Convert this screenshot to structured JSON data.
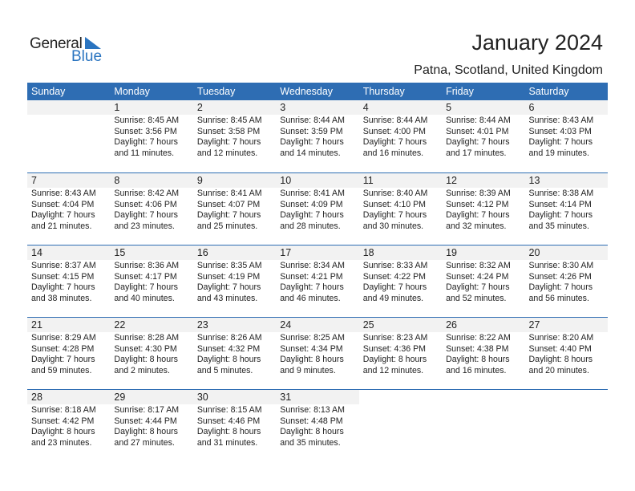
{
  "logo": {
    "general": "General",
    "blue": "Blue"
  },
  "header": {
    "title": "January 2024",
    "location": "Patna, Scotland, United Kingdom"
  },
  "colors": {
    "accent": "#2e6db3",
    "day_band": "#f2f2f2"
  },
  "weekdays": [
    "Sunday",
    "Monday",
    "Tuesday",
    "Wednesday",
    "Thursday",
    "Friday",
    "Saturday"
  ],
  "weeks": [
    [
      null,
      {
        "day": "1",
        "sunrise": "Sunrise: 8:45 AM",
        "sunset": "Sunset: 3:56 PM",
        "daylight1": "Daylight: 7 hours",
        "daylight2": "and 11 minutes."
      },
      {
        "day": "2",
        "sunrise": "Sunrise: 8:45 AM",
        "sunset": "Sunset: 3:58 PM",
        "daylight1": "Daylight: 7 hours",
        "daylight2": "and 12 minutes."
      },
      {
        "day": "3",
        "sunrise": "Sunrise: 8:44 AM",
        "sunset": "Sunset: 3:59 PM",
        "daylight1": "Daylight: 7 hours",
        "daylight2": "and 14 minutes."
      },
      {
        "day": "4",
        "sunrise": "Sunrise: 8:44 AM",
        "sunset": "Sunset: 4:00 PM",
        "daylight1": "Daylight: 7 hours",
        "daylight2": "and 16 minutes."
      },
      {
        "day": "5",
        "sunrise": "Sunrise: 8:44 AM",
        "sunset": "Sunset: 4:01 PM",
        "daylight1": "Daylight: 7 hours",
        "daylight2": "and 17 minutes."
      },
      {
        "day": "6",
        "sunrise": "Sunrise: 8:43 AM",
        "sunset": "Sunset: 4:03 PM",
        "daylight1": "Daylight: 7 hours",
        "daylight2": "and 19 minutes."
      }
    ],
    [
      {
        "day": "7",
        "sunrise": "Sunrise: 8:43 AM",
        "sunset": "Sunset: 4:04 PM",
        "daylight1": "Daylight: 7 hours",
        "daylight2": "and 21 minutes."
      },
      {
        "day": "8",
        "sunrise": "Sunrise: 8:42 AM",
        "sunset": "Sunset: 4:06 PM",
        "daylight1": "Daylight: 7 hours",
        "daylight2": "and 23 minutes."
      },
      {
        "day": "9",
        "sunrise": "Sunrise: 8:41 AM",
        "sunset": "Sunset: 4:07 PM",
        "daylight1": "Daylight: 7 hours",
        "daylight2": "and 25 minutes."
      },
      {
        "day": "10",
        "sunrise": "Sunrise: 8:41 AM",
        "sunset": "Sunset: 4:09 PM",
        "daylight1": "Daylight: 7 hours",
        "daylight2": "and 28 minutes."
      },
      {
        "day": "11",
        "sunrise": "Sunrise: 8:40 AM",
        "sunset": "Sunset: 4:10 PM",
        "daylight1": "Daylight: 7 hours",
        "daylight2": "and 30 minutes."
      },
      {
        "day": "12",
        "sunrise": "Sunrise: 8:39 AM",
        "sunset": "Sunset: 4:12 PM",
        "daylight1": "Daylight: 7 hours",
        "daylight2": "and 32 minutes."
      },
      {
        "day": "13",
        "sunrise": "Sunrise: 8:38 AM",
        "sunset": "Sunset: 4:14 PM",
        "daylight1": "Daylight: 7 hours",
        "daylight2": "and 35 minutes."
      }
    ],
    [
      {
        "day": "14",
        "sunrise": "Sunrise: 8:37 AM",
        "sunset": "Sunset: 4:15 PM",
        "daylight1": "Daylight: 7 hours",
        "daylight2": "and 38 minutes."
      },
      {
        "day": "15",
        "sunrise": "Sunrise: 8:36 AM",
        "sunset": "Sunset: 4:17 PM",
        "daylight1": "Daylight: 7 hours",
        "daylight2": "and 40 minutes."
      },
      {
        "day": "16",
        "sunrise": "Sunrise: 8:35 AM",
        "sunset": "Sunset: 4:19 PM",
        "daylight1": "Daylight: 7 hours",
        "daylight2": "and 43 minutes."
      },
      {
        "day": "17",
        "sunrise": "Sunrise: 8:34 AM",
        "sunset": "Sunset: 4:21 PM",
        "daylight1": "Daylight: 7 hours",
        "daylight2": "and 46 minutes."
      },
      {
        "day": "18",
        "sunrise": "Sunrise: 8:33 AM",
        "sunset": "Sunset: 4:22 PM",
        "daylight1": "Daylight: 7 hours",
        "daylight2": "and 49 minutes."
      },
      {
        "day": "19",
        "sunrise": "Sunrise: 8:32 AM",
        "sunset": "Sunset: 4:24 PM",
        "daylight1": "Daylight: 7 hours",
        "daylight2": "and 52 minutes."
      },
      {
        "day": "20",
        "sunrise": "Sunrise: 8:30 AM",
        "sunset": "Sunset: 4:26 PM",
        "daylight1": "Daylight: 7 hours",
        "daylight2": "and 56 minutes."
      }
    ],
    [
      {
        "day": "21",
        "sunrise": "Sunrise: 8:29 AM",
        "sunset": "Sunset: 4:28 PM",
        "daylight1": "Daylight: 7 hours",
        "daylight2": "and 59 minutes."
      },
      {
        "day": "22",
        "sunrise": "Sunrise: 8:28 AM",
        "sunset": "Sunset: 4:30 PM",
        "daylight1": "Daylight: 8 hours",
        "daylight2": "and 2 minutes."
      },
      {
        "day": "23",
        "sunrise": "Sunrise: 8:26 AM",
        "sunset": "Sunset: 4:32 PM",
        "daylight1": "Daylight: 8 hours",
        "daylight2": "and 5 minutes."
      },
      {
        "day": "24",
        "sunrise": "Sunrise: 8:25 AM",
        "sunset": "Sunset: 4:34 PM",
        "daylight1": "Daylight: 8 hours",
        "daylight2": "and 9 minutes."
      },
      {
        "day": "25",
        "sunrise": "Sunrise: 8:23 AM",
        "sunset": "Sunset: 4:36 PM",
        "daylight1": "Daylight: 8 hours",
        "daylight2": "and 12 minutes."
      },
      {
        "day": "26",
        "sunrise": "Sunrise: 8:22 AM",
        "sunset": "Sunset: 4:38 PM",
        "daylight1": "Daylight: 8 hours",
        "daylight2": "and 16 minutes."
      },
      {
        "day": "27",
        "sunrise": "Sunrise: 8:20 AM",
        "sunset": "Sunset: 4:40 PM",
        "daylight1": "Daylight: 8 hours",
        "daylight2": "and 20 minutes."
      }
    ],
    [
      {
        "day": "28",
        "sunrise": "Sunrise: 8:18 AM",
        "sunset": "Sunset: 4:42 PM",
        "daylight1": "Daylight: 8 hours",
        "daylight2": "and 23 minutes."
      },
      {
        "day": "29",
        "sunrise": "Sunrise: 8:17 AM",
        "sunset": "Sunset: 4:44 PM",
        "daylight1": "Daylight: 8 hours",
        "daylight2": "and 27 minutes."
      },
      {
        "day": "30",
        "sunrise": "Sunrise: 8:15 AM",
        "sunset": "Sunset: 4:46 PM",
        "daylight1": "Daylight: 8 hours",
        "daylight2": "and 31 minutes."
      },
      {
        "day": "31",
        "sunrise": "Sunrise: 8:13 AM",
        "sunset": "Sunset: 4:48 PM",
        "daylight1": "Daylight: 8 hours",
        "daylight2": "and 35 minutes."
      },
      null,
      null,
      null
    ]
  ]
}
